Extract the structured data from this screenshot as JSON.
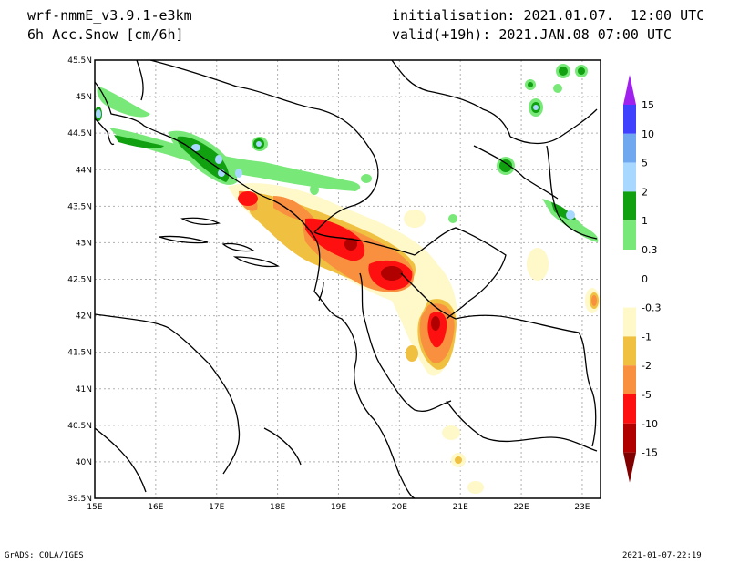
{
  "header": {
    "model": "wrf-nmmE_v3.9.1-e3km",
    "variable": "6h Acc.Snow [cm/6h]",
    "init": "initialisation: 2021.01.07.  12:00 UTC",
    "valid": "valid(+19h): 2021.JAN.08 07:00 UTC"
  },
  "axes": {
    "lon_ticks": [
      "15E",
      "16E",
      "17E",
      "18E",
      "19E",
      "20E",
      "21E",
      "22E",
      "23E"
    ],
    "lat_ticks": [
      "39.5N",
      "40N",
      "40.5N",
      "41N",
      "41.5N",
      "42N",
      "42.5N",
      "43N",
      "43.5N",
      "44N",
      "44.5N",
      "45N",
      "45.5N"
    ],
    "lon_range": [
      15,
      23.3
    ],
    "lat_range": [
      39.5,
      45.5
    ]
  },
  "legend": {
    "levels": [
      "15",
      "10",
      "5",
      "2",
      "1",
      "0.3",
      "0",
      "-0.3",
      "-1",
      "-2",
      "-5",
      "-10",
      "-15"
    ],
    "colors": [
      "#a020f0",
      "#4040ff",
      "#70a8f0",
      "#a8d8ff",
      "#10a010",
      "#78e878",
      "#ffffff",
      "#ffffff",
      "#fff8c8",
      "#f0c040",
      "#f89040",
      "#ff1010",
      "#b00000",
      "#800000"
    ]
  },
  "colors": {
    "light_yellow": "#fff8c8",
    "yellow": "#f0c040",
    "orange": "#f89040",
    "red": "#ff1010",
    "dark_red": "#b00000",
    "light_green": "#78e878",
    "green": "#10a010",
    "light_blue": "#a8d8ff",
    "blue": "#70a8f0"
  },
  "footer": {
    "left": "GrADS: COLA/IGES",
    "right": "2021-01-07-22:19"
  }
}
